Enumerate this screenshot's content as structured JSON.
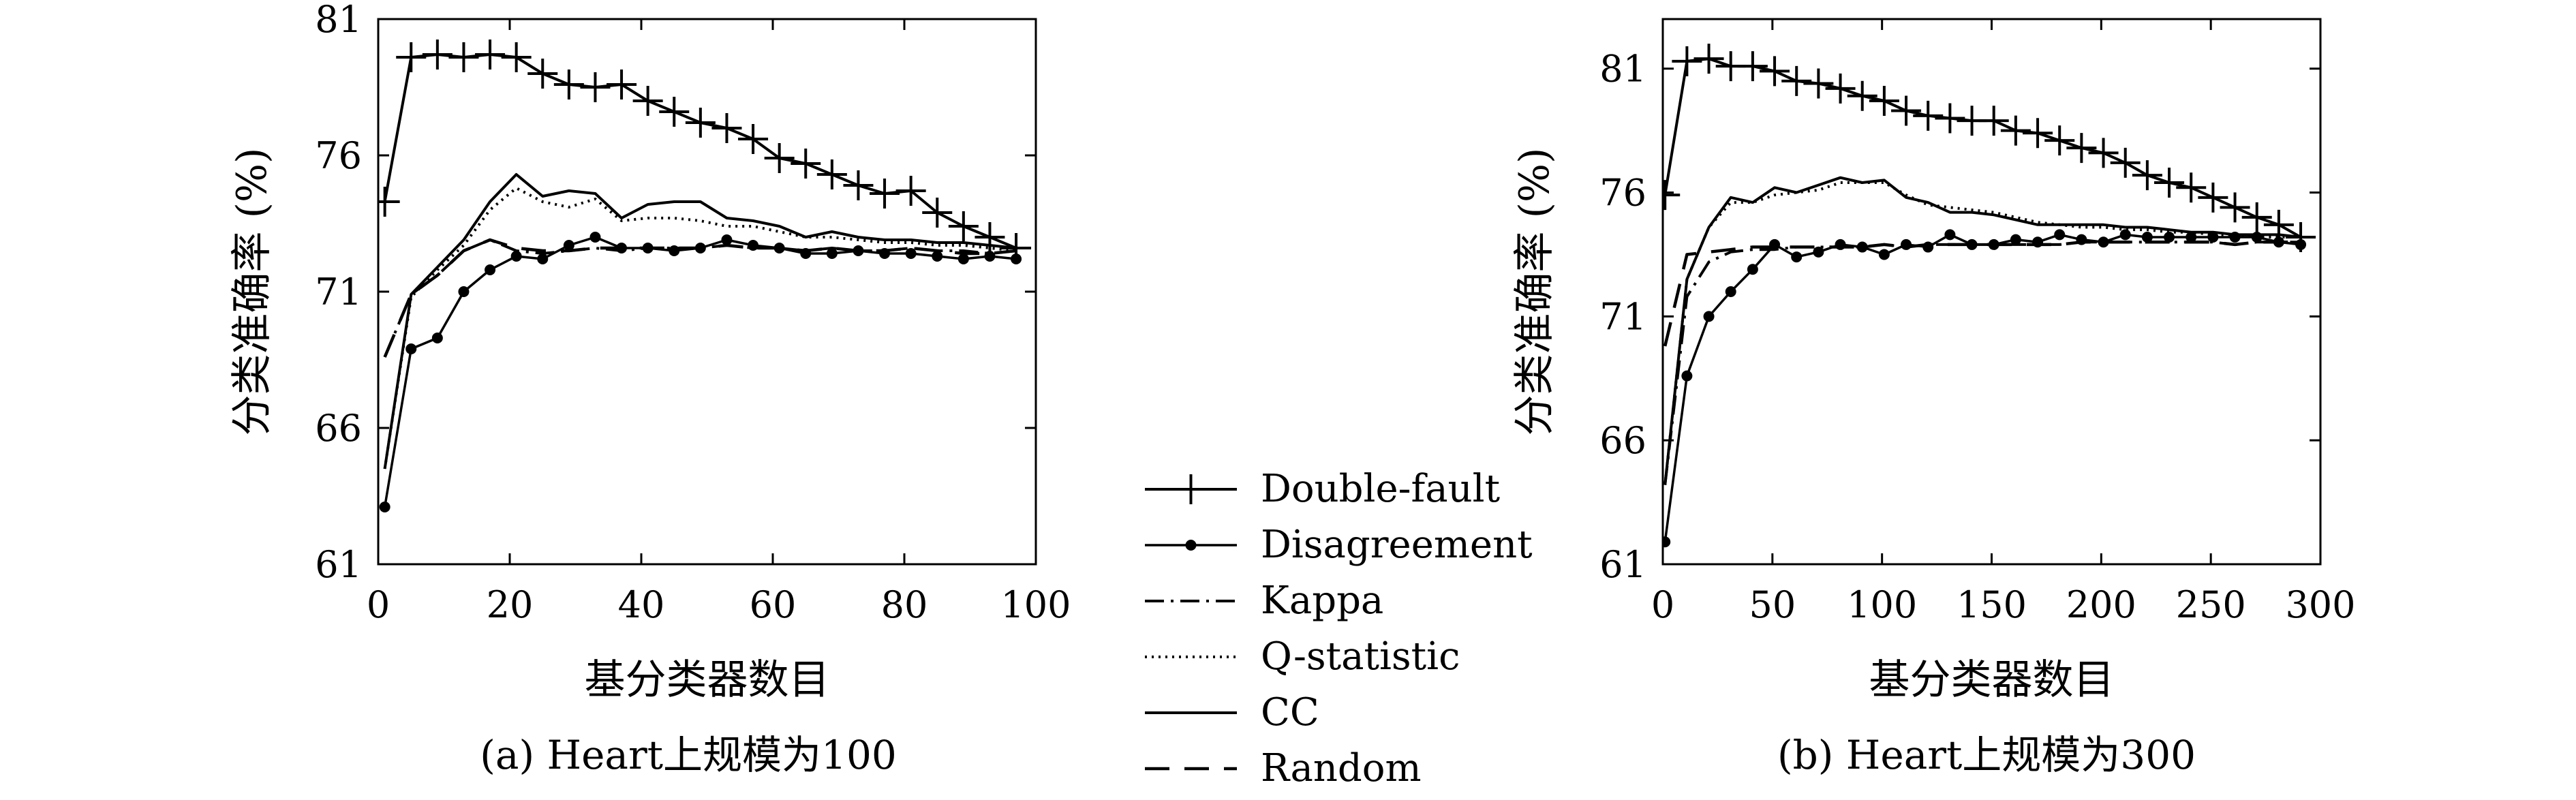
{
  "chart_data": [
    {
      "type": "line",
      "title": "",
      "caption": "(a) Heart上规模为100",
      "xlabel": "基分类器数目",
      "ylabel": "分类准确率 (%)",
      "xlim": [
        0,
        100
      ],
      "ylim": [
        61,
        81
      ],
      "xticks": [
        0,
        20,
        40,
        60,
        80,
        100
      ],
      "yticks": [
        61,
        66,
        71,
        76,
        81
      ],
      "x": [
        1,
        5,
        9,
        13,
        17,
        21,
        25,
        29,
        33,
        37,
        41,
        45,
        49,
        53,
        57,
        61,
        65,
        69,
        73,
        77,
        81,
        85,
        89,
        93,
        97
      ],
      "series": [
        {
          "name": "Double-fault",
          "style": "solid-plus",
          "values": [
            74.3,
            79.6,
            79.7,
            79.6,
            79.7,
            79.6,
            79.0,
            78.6,
            78.5,
            78.6,
            78.0,
            77.6,
            77.2,
            77.0,
            76.6,
            75.9,
            75.7,
            75.3,
            74.9,
            74.6,
            74.7,
            73.9,
            73.4,
            73.0,
            72.6
          ]
        },
        {
          "name": "Disagreement",
          "style": "solid-dot",
          "values": [
            63.1,
            68.9,
            69.3,
            71.0,
            71.8,
            72.3,
            72.2,
            72.7,
            73.0,
            72.6,
            72.6,
            72.5,
            72.6,
            72.9,
            72.7,
            72.6,
            72.4,
            72.4,
            72.5,
            72.4,
            72.4,
            72.3,
            72.2,
            72.3,
            72.2
          ]
        },
        {
          "name": "Kappa",
          "style": "dashdot",
          "values": [
            68.6,
            70.9,
            71.6,
            72.5,
            72.9,
            72.5,
            72.4,
            72.5,
            72.6,
            72.5,
            72.6,
            72.6,
            72.6,
            72.7,
            72.6,
            72.6,
            72.5,
            72.6,
            72.5,
            72.5,
            72.6,
            72.5,
            72.5,
            72.4,
            72.5
          ]
        },
        {
          "name": "Q-statistic",
          "style": "dotted",
          "values": [
            64.5,
            70.8,
            71.8,
            72.7,
            74.0,
            74.8,
            74.3,
            74.1,
            74.4,
            73.6,
            73.7,
            73.7,
            73.6,
            73.4,
            73.4,
            73.2,
            73.0,
            73.0,
            72.9,
            72.8,
            72.8,
            72.7,
            72.7,
            72.6,
            72.5
          ]
        },
        {
          "name": "CC",
          "style": "solid",
          "values": [
            64.5,
            70.9,
            71.9,
            72.9,
            74.3,
            75.3,
            74.5,
            74.7,
            74.6,
            73.7,
            74.2,
            74.3,
            74.3,
            73.7,
            73.6,
            73.4,
            73.0,
            73.2,
            73.0,
            72.9,
            72.9,
            72.8,
            72.8,
            72.7,
            72.6
          ]
        },
        {
          "name": "Random",
          "style": "dashed",
          "values": [
            68.6,
            70.9,
            71.6,
            72.5,
            72.9,
            72.6,
            72.5,
            72.5,
            72.6,
            72.6,
            72.6,
            72.6,
            72.6,
            72.7,
            72.6,
            72.6,
            72.5,
            72.6,
            72.5,
            72.5,
            72.6,
            72.5,
            72.4,
            72.4,
            72.5
          ]
        }
      ]
    },
    {
      "type": "line",
      "title": "",
      "caption": "(b) Heart上规模为300",
      "xlabel": "基分类器数目",
      "ylabel": "分类准确率 (%)",
      "xlim": [
        0,
        300
      ],
      "ylim": [
        61,
        83
      ],
      "xticks": [
        0,
        50,
        100,
        150,
        200,
        250,
        300
      ],
      "yticks": [
        61,
        66,
        71,
        76,
        81
      ],
      "x": [
        1,
        11,
        21,
        31,
        41,
        51,
        61,
        71,
        81,
        91,
        101,
        111,
        121,
        131,
        141,
        151,
        161,
        171,
        181,
        191,
        201,
        211,
        221,
        231,
        241,
        251,
        261,
        271,
        281,
        291
      ],
      "series": [
        {
          "name": "Double-fault",
          "style": "solid-plus",
          "values": [
            75.9,
            81.3,
            81.4,
            81.1,
            81.1,
            80.9,
            80.5,
            80.4,
            80.2,
            79.9,
            79.7,
            79.3,
            79.1,
            79.0,
            78.9,
            78.9,
            78.5,
            78.4,
            78.1,
            77.8,
            77.6,
            77.2,
            76.7,
            76.4,
            76.2,
            75.8,
            75.4,
            75.0,
            74.7,
            74.2
          ]
        },
        {
          "name": "Disagreement",
          "style": "solid-dot",
          "values": [
            61.9,
            68.6,
            71.0,
            72.0,
            72.9,
            73.9,
            73.4,
            73.6,
            73.9,
            73.8,
            73.5,
            73.9,
            73.8,
            74.3,
            73.9,
            73.9,
            74.1,
            74.0,
            74.3,
            74.1,
            74.0,
            74.3,
            74.2,
            74.2,
            74.2,
            74.2,
            74.2,
            74.2,
            74.0,
            73.9
          ]
        },
        {
          "name": "Kappa",
          "style": "dashdot",
          "values": [
            64.2,
            71.8,
            73.2,
            73.6,
            73.7,
            73.7,
            73.8,
            73.8,
            73.8,
            73.8,
            73.9,
            73.8,
            73.9,
            73.9,
            73.9,
            73.9,
            73.9,
            73.9,
            73.9,
            74.0,
            74.0,
            74.0,
            74.0,
            74.0,
            74.0,
            74.0,
            73.9,
            74.0,
            74.0,
            74.0
          ]
        },
        {
          "name": "Q-statistic",
          "style": "dotted",
          "values": [
            64.2,
            72.5,
            74.6,
            75.6,
            75.6,
            75.9,
            76.0,
            76.1,
            76.4,
            76.4,
            76.4,
            75.9,
            75.5,
            75.4,
            75.3,
            75.2,
            75.0,
            74.8,
            74.7,
            74.6,
            74.6,
            74.5,
            74.5,
            74.4,
            74.4,
            74.3,
            74.3,
            74.2,
            74.2,
            74.2
          ]
        },
        {
          "name": "CC",
          "style": "solid",
          "values": [
            64.2,
            72.5,
            74.6,
            75.8,
            75.6,
            76.2,
            76.0,
            76.3,
            76.6,
            76.4,
            76.5,
            75.8,
            75.6,
            75.2,
            75.2,
            75.1,
            74.9,
            74.7,
            74.7,
            74.7,
            74.7,
            74.6,
            74.6,
            74.5,
            74.4,
            74.4,
            74.3,
            74.3,
            74.3,
            74.2
          ]
        },
        {
          "name": "Random",
          "style": "dashed",
          "values": [
            69.8,
            73.5,
            73.6,
            73.7,
            73.8,
            73.8,
            73.8,
            73.8,
            73.8,
            73.8,
            73.9,
            73.8,
            73.9,
            73.9,
            73.9,
            73.9,
            73.9,
            73.9,
            73.9,
            74.0,
            74.0,
            74.0,
            74.0,
            74.0,
            74.0,
            74.0,
            73.9,
            74.0,
            74.0,
            74.0
          ]
        }
      ]
    }
  ],
  "legend": {
    "entries": [
      "Double-fault",
      "Disagreement",
      "Kappa",
      "Q-statistic",
      "CC",
      "Random"
    ]
  }
}
